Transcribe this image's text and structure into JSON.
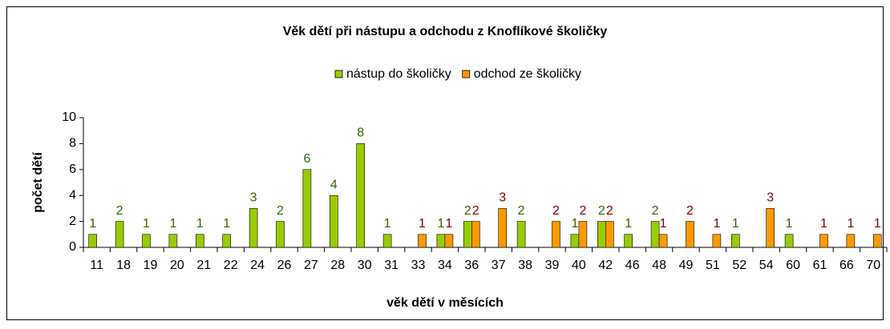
{
  "chart_data": {
    "type": "bar",
    "title": "Věk dětí při nástupu a odchodu z Knoflíkové školičky",
    "x_label": "věk dětí v měsících",
    "y_label": "počet dětí",
    "categories": [
      "11",
      "18",
      "19",
      "20",
      "21",
      "22",
      "24",
      "26",
      "27",
      "28",
      "30",
      "31",
      "33",
      "34",
      "36",
      "37",
      "38",
      "39",
      "40",
      "42",
      "46",
      "48",
      "49",
      "51",
      "52",
      "54",
      "60",
      "61",
      "66",
      "70"
    ],
    "series": [
      {
        "name": "nástup do školičky",
        "color": "#99cc00",
        "label_color": "#336600",
        "values": [
          1,
          2,
          1,
          1,
          1,
          1,
          3,
          2,
          6,
          4,
          8,
          1,
          null,
          1,
          2,
          null,
          2,
          null,
          1,
          2,
          1,
          2,
          null,
          null,
          1,
          null,
          1,
          null,
          null,
          null
        ]
      },
      {
        "name": "odchod ze školičky",
        "color": "#ff9900",
        "label_color": "#800000",
        "values": [
          null,
          null,
          null,
          null,
          null,
          null,
          null,
          null,
          null,
          null,
          null,
          null,
          1,
          1,
          2,
          3,
          null,
          2,
          2,
          2,
          null,
          1,
          2,
          1,
          null,
          3,
          null,
          1,
          1,
          1
        ]
      }
    ],
    "ylim": [
      0,
      10
    ],
    "yticks": [
      0,
      2,
      4,
      6,
      8,
      10
    ],
    "grid": false,
    "legend": "top"
  }
}
